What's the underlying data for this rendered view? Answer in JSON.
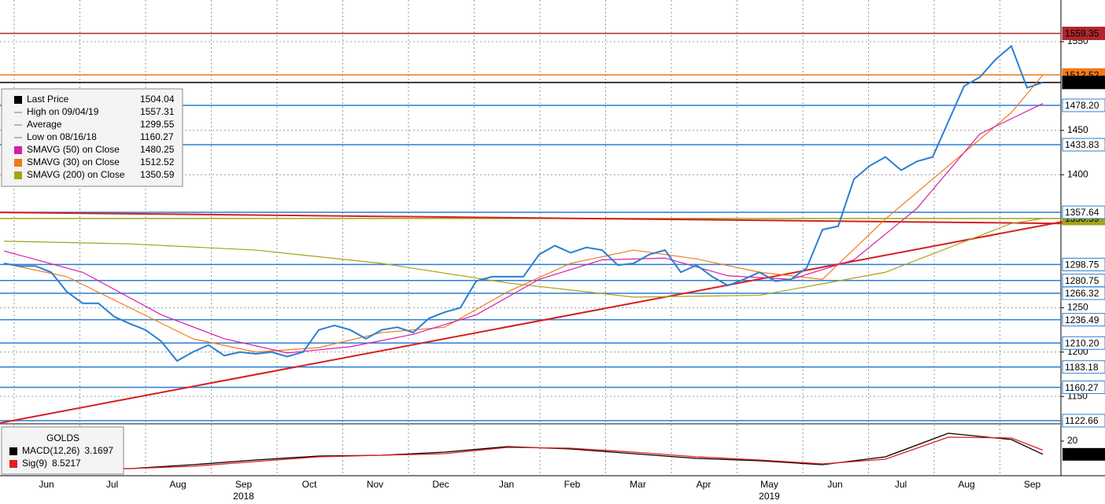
{
  "chart_data": {
    "type": "line",
    "ylim": [
      1120,
      1597
    ],
    "yticks": [
      1150,
      1200,
      1250,
      1400,
      1450,
      1550
    ],
    "grid": true,
    "months": [
      "Jun",
      "Jul",
      "Aug",
      "Sep",
      "Oct",
      "Nov",
      "Dec",
      "Jan",
      "Feb",
      "Mar",
      "Apr",
      "May",
      "Jun",
      "Jul",
      "Aug",
      "Sep"
    ],
    "years": [
      "2018",
      "2019"
    ],
    "x": [
      0,
      1,
      2,
      3,
      4,
      5,
      6,
      7,
      8,
      9,
      10,
      11,
      12,
      13,
      14,
      15,
      16,
      17,
      18,
      19,
      20,
      21,
      22,
      23,
      24,
      25,
      26,
      27,
      28,
      29,
      30,
      31,
      32,
      33,
      34,
      35,
      36,
      37,
      38,
      39,
      40,
      41,
      42,
      43,
      44,
      45,
      46,
      47,
      48,
      49,
      50,
      51,
      52,
      53,
      54,
      55,
      56,
      57,
      58,
      59,
      60,
      61,
      62,
      63,
      64,
      65,
      66
    ],
    "series": [
      {
        "color": "#2a7fd4",
        "values": [
          1300,
          1297,
          1297,
          1290,
          1268,
          1255,
          1255,
          1240,
          1232,
          1225,
          1212,
          1190,
          1200,
          1208,
          1196,
          1200,
          1198,
          1200,
          1195,
          1200,
          1225,
          1230,
          1225,
          1215,
          1225,
          1228,
          1222,
          1238,
          1245,
          1250,
          1280,
          1285,
          1285,
          1285,
          1310,
          1320,
          1312,
          1318,
          1315,
          1298,
          1300,
          1310,
          1315,
          1290,
          1298,
          1285,
          1275,
          1282,
          1290,
          1280,
          1282,
          1295,
          1338,
          1342,
          1395,
          1410,
          1420,
          1405,
          1415,
          1420,
          1460,
          1500,
          1510,
          1530,
          1545,
          1498,
          1504.04
        ]
      },
      {
        "name": "SMAVG (50)  on Close",
        "color": "#d81ea8",
        "x": [
          0,
          5,
          10,
          14,
          18,
          22,
          26,
          30,
          34,
          38,
          42,
          46,
          50,
          54,
          58,
          62,
          66
        ],
        "values": [
          1314,
          1290,
          1242,
          1215,
          1199,
          1206,
          1220,
          1242,
          1282,
          1304,
          1306,
          1286,
          1282,
          1304,
          1362,
          1446,
          1480.25
        ]
      },
      {
        "name": "SMAVG (30)  on Close",
        "color": "#f07a1a",
        "x": [
          0,
          4,
          8,
          12,
          16,
          20,
          24,
          28,
          32,
          36,
          40,
          44,
          48,
          52,
          56,
          60,
          64,
          66
        ],
        "values": [
          1300,
          1285,
          1250,
          1215,
          1200,
          1205,
          1222,
          1228,
          1268,
          1300,
          1315,
          1305,
          1290,
          1282,
          1350,
          1410,
          1470,
          1512.52
        ]
      },
      {
        "name": "SMAVG (200)  on Close",
        "color": "#a3a31a",
        "x": [
          0,
          8,
          16,
          24,
          32,
          40,
          48,
          56,
          64,
          66
        ],
        "values": [
          1325,
          1322,
          1315,
          1300,
          1278,
          1262,
          1264,
          1290,
          1345,
          1350.59
        ]
      }
    ],
    "stats": [
      {
        "label": "Last Price"
      },
      {
        "label": "High on 09/04/19",
        "value": 1557.31
      },
      {
        "label": "Average",
        "value": 1299.55
      },
      {
        "label": "Low on 08/16/18",
        "value": 1160.27
      }
    ],
    "levels": [
      {
        "value": 1559.35,
        "color": "#b0262c"
      },
      {
        "value": 1512.52,
        "color": "#f07a1a"
      },
      {
        "value": 1504.04,
        "color": "#000000"
      },
      {
        "value": {
          "value": 1478.2,
          "label": "1478.20"
        },
        "color": "#2a7fd4"
      },
      {
        "value": 1433.83,
        "color": "#2a7fd4"
      },
      {
        "value": 1350.59,
        "color": "#a3a31a"
      },
      {
        "value": 1357.64,
        "color": "#2a7fd4"
      },
      {
        "value": 1298.75,
        "color": "#2a7fd4"
      },
      {
        "value": 1280.75,
        "color": "#2a7fd4"
      },
      {
        "value": 1266.32,
        "color": "#2a7fd4"
      },
      {
        "value": 1236.49,
        "color": "#2a7fd4"
      },
      {
        "value": {
          "value": 1210.2,
          "label": "1210.20"
        },
        "color": "#2a7fd4"
      },
      {
        "value": 1183.18,
        "color": "#2a7fd4"
      },
      {
        "value": 1160.27,
        "color": "#2a7fd4"
      },
      {
        "value": 1122.66,
        "color": "#2a7fd4"
      }
    ],
    "trendlines": [
      {
        "color": "#d42020",
        "x": [
          -0.25,
          67.25
        ],
        "y": [
          1120,
          1347
        ]
      },
      {
        "color": "#d42020",
        "x": [
          -0.25,
          67.25
        ],
        "y": [
          1357.5,
          1345
        ]
      }
    ],
    "macd": {
      "title": "GOLDS",
      "ylim": [
        -24,
        41
      ],
      "yticks": [
        20
      ],
      "x": [
        0,
        4,
        8,
        12,
        16,
        20,
        24,
        28,
        32,
        36,
        40,
        44,
        48,
        52,
        56,
        60,
        64,
        66
      ],
      "series": [
        {
          "name": "MACD(12,26)",
          "color": "#000000",
          "values": [
            -14,
            -15,
            -15,
            -10,
            -4,
            1,
            2,
            6,
            13,
            10,
            4,
            -2,
            -5,
            -10,
            0,
            30,
            22,
            3.1697
          ]
        },
        {
          "name": "Sig(9)",
          "color": "#e02020",
          "values": [
            -13,
            -14,
            -15,
            -12,
            -6,
            0,
            2,
            4,
            12,
            11,
            6,
            0,
            -4,
            -9,
            -3,
            25,
            24,
            8.5217
          ]
        }
      ]
    }
  }
}
